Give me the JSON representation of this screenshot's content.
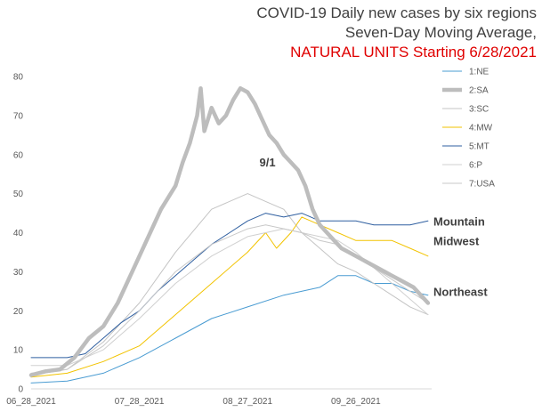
{
  "chart_data": {
    "type": "line",
    "title": "COVID-19 Daily new cases by six regions",
    "title_line2": "Seven-Day Moving Average,",
    "title_line3": "NATURAL UNITS Starting 6/28/2021",
    "xlabel": "",
    "ylabel": "",
    "ylim": [
      0,
      80
    ],
    "yticks": [
      0,
      10,
      20,
      30,
      40,
      50,
      60,
      70,
      80
    ],
    "xticks": [
      "06_28_2021",
      "07_28_2021",
      "08_27_2021",
      "09_26_2021"
    ],
    "xtick_days": [
      0,
      30,
      60,
      90
    ],
    "x_days": 111,
    "grid": false,
    "legend": "right",
    "series": [
      {
        "name": "1:NE",
        "color": "#4a9cd2",
        "width": 1,
        "values": [
          [
            0,
            1.5
          ],
          [
            10,
            2
          ],
          [
            20,
            4
          ],
          [
            30,
            8
          ],
          [
            40,
            13
          ],
          [
            50,
            18
          ],
          [
            60,
            21
          ],
          [
            70,
            24
          ],
          [
            80,
            26
          ],
          [
            85,
            29
          ],
          [
            90,
            29
          ],
          [
            95,
            27
          ],
          [
            100,
            27
          ],
          [
            105,
            25
          ],
          [
            110,
            24
          ]
        ]
      },
      {
        "name": "2:SA",
        "color": "#bdbdbd",
        "width": 4.5,
        "values": [
          [
            0,
            3.5
          ],
          [
            4,
            4.5
          ],
          [
            8,
            5
          ],
          [
            12,
            8
          ],
          [
            16,
            13
          ],
          [
            20,
            16
          ],
          [
            24,
            22
          ],
          [
            28,
            30
          ],
          [
            32,
            38
          ],
          [
            36,
            46
          ],
          [
            40,
            52
          ],
          [
            42,
            58
          ],
          [
            44,
            63
          ],
          [
            46,
            70
          ],
          [
            47,
            77
          ],
          [
            48,
            66
          ],
          [
            50,
            72
          ],
          [
            52,
            68
          ],
          [
            54,
            70
          ],
          [
            56,
            74
          ],
          [
            58,
            77
          ],
          [
            60,
            76
          ],
          [
            62,
            73
          ],
          [
            64,
            69
          ],
          [
            66,
            65
          ],
          [
            68,
            63
          ],
          [
            70,
            60
          ],
          [
            72,
            58
          ],
          [
            74,
            56
          ],
          [
            76,
            52
          ],
          [
            78,
            46
          ],
          [
            80,
            42
          ],
          [
            82,
            40
          ],
          [
            84,
            38
          ],
          [
            86,
            36
          ],
          [
            88,
            35
          ],
          [
            90,
            34
          ],
          [
            92,
            33
          ],
          [
            94,
            32
          ],
          [
            96,
            31
          ],
          [
            98,
            30
          ],
          [
            100,
            29
          ],
          [
            102,
            28
          ],
          [
            104,
            27
          ],
          [
            106,
            26
          ],
          [
            108,
            24
          ],
          [
            110,
            22
          ]
        ]
      },
      {
        "name": "3:SC",
        "color": "#c4c4c4",
        "width": 1,
        "values": [
          [
            0,
            3.5
          ],
          [
            10,
            5
          ],
          [
            20,
            12
          ],
          [
            30,
            22
          ],
          [
            40,
            35
          ],
          [
            50,
            46
          ],
          [
            60,
            50
          ],
          [
            65,
            48
          ],
          [
            70,
            46
          ],
          [
            75,
            40
          ],
          [
            80,
            36
          ],
          [
            85,
            32
          ],
          [
            90,
            30
          ],
          [
            95,
            27
          ],
          [
            100,
            24
          ],
          [
            105,
            21
          ],
          [
            110,
            19
          ]
        ]
      },
      {
        "name": "4:MW",
        "color": "#f2c300",
        "width": 1,
        "values": [
          [
            0,
            3
          ],
          [
            10,
            4
          ],
          [
            20,
            7
          ],
          [
            30,
            11
          ],
          [
            40,
            19
          ],
          [
            50,
            27
          ],
          [
            60,
            35
          ],
          [
            65,
            40
          ],
          [
            68,
            36
          ],
          [
            72,
            40
          ],
          [
            75,
            44
          ],
          [
            80,
            42
          ],
          [
            85,
            40
          ],
          [
            90,
            38
          ],
          [
            95,
            38
          ],
          [
            100,
            38
          ],
          [
            105,
            36
          ],
          [
            110,
            34
          ]
        ]
      },
      {
        "name": "5:MT",
        "color": "#2f5fa0",
        "width": 1,
        "values": [
          [
            0,
            8
          ],
          [
            10,
            8
          ],
          [
            15,
            9
          ],
          [
            20,
            13
          ],
          [
            25,
            17
          ],
          [
            30,
            20
          ],
          [
            35,
            25
          ],
          [
            40,
            29
          ],
          [
            45,
            33
          ],
          [
            50,
            37
          ],
          [
            55,
            40
          ],
          [
            60,
            43
          ],
          [
            65,
            45
          ],
          [
            70,
            44
          ],
          [
            75,
            45
          ],
          [
            80,
            43
          ],
          [
            85,
            43
          ],
          [
            90,
            43
          ],
          [
            95,
            42
          ],
          [
            100,
            42
          ],
          [
            105,
            42
          ],
          [
            110,
            43
          ]
        ]
      },
      {
        "name": "6:P",
        "color": "#d0d0d0",
        "width": 1,
        "values": [
          [
            0,
            6
          ],
          [
            10,
            6
          ],
          [
            20,
            10
          ],
          [
            30,
            18
          ],
          [
            40,
            27
          ],
          [
            50,
            34
          ],
          [
            60,
            39
          ],
          [
            65,
            40
          ],
          [
            70,
            41
          ],
          [
            75,
            40
          ],
          [
            80,
            39
          ],
          [
            85,
            38
          ],
          [
            90,
            35
          ],
          [
            95,
            31
          ],
          [
            100,
            27
          ],
          [
            105,
            23
          ],
          [
            110,
            19
          ]
        ]
      },
      {
        "name": "7:USA",
        "color": "#c8c8c8",
        "width": 1,
        "values": [
          [
            0,
            4
          ],
          [
            10,
            5
          ],
          [
            20,
            11
          ],
          [
            30,
            20
          ],
          [
            40,
            30
          ],
          [
            50,
            37
          ],
          [
            60,
            41
          ],
          [
            65,
            42
          ],
          [
            70,
            41
          ],
          [
            75,
            40
          ],
          [
            80,
            38
          ],
          [
            85,
            37
          ],
          [
            90,
            34
          ],
          [
            95,
            31
          ],
          [
            100,
            28
          ],
          [
            105,
            25
          ],
          [
            110,
            22
          ]
        ]
      }
    ],
    "annotations": [
      {
        "text": "9/1",
        "x": 65,
        "y": 57
      },
      {
        "text": "Mountain",
        "x": 111,
        "y": 43
      },
      {
        "text": "Midwest",
        "x": 111,
        "y": 38
      },
      {
        "text": "Northeast",
        "x": 111,
        "y": 25
      }
    ]
  }
}
